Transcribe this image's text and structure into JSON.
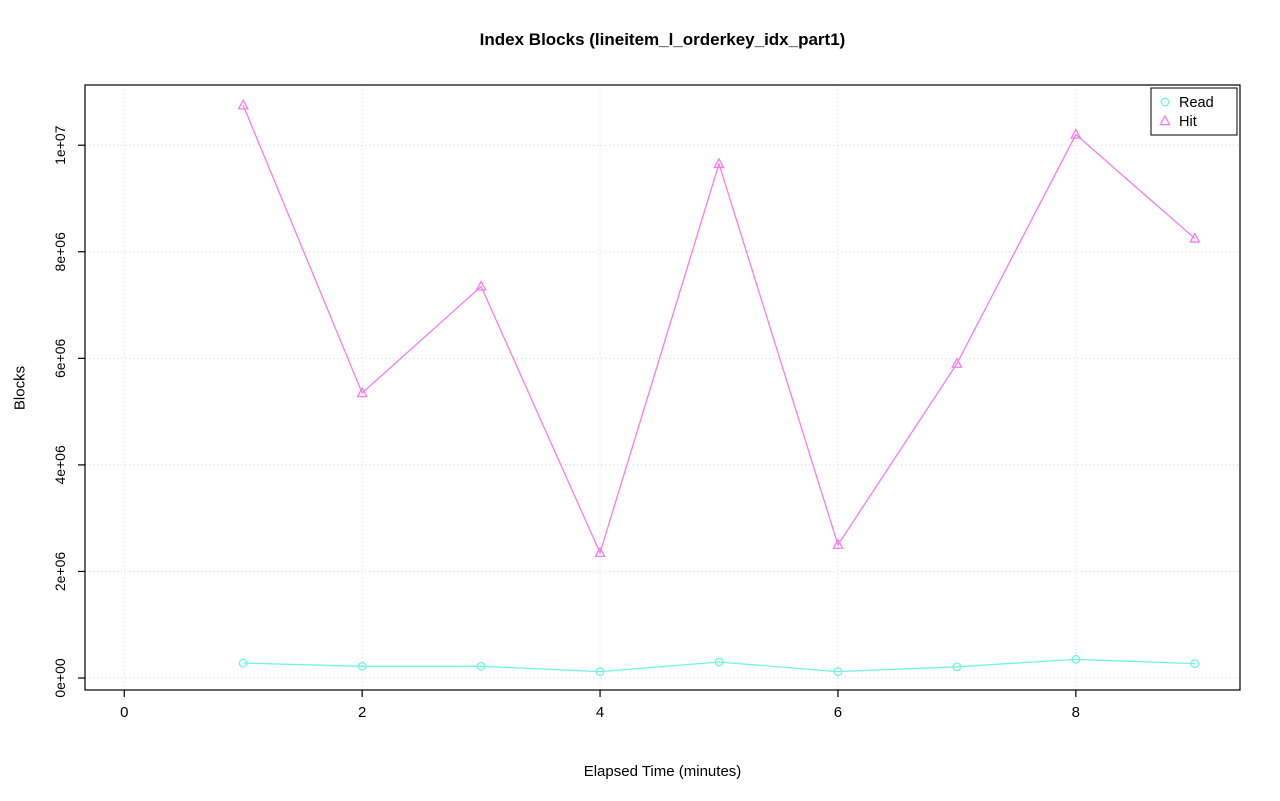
{
  "figure": {
    "title": "Index Blocks (lineitem_l_orderkey_idx_part1)",
    "xlabel": "Elapsed Time (minutes)",
    "ylabel": "Blocks"
  },
  "chart_data": {
    "type": "line",
    "title": "Index Blocks (lineitem_l_orderkey_idx_part1)",
    "xlabel": "Elapsed Time (minutes)",
    "ylabel": "Blocks",
    "x": [
      1,
      2,
      3,
      4,
      5,
      6,
      7,
      8,
      9
    ],
    "series": [
      {
        "name": "Read",
        "marker": "circle",
        "color": "#70f6e0",
        "values": [
          280000,
          220000,
          220000,
          120000,
          300000,
          120000,
          210000,
          350000,
          270000
        ]
      },
      {
        "name": "Hit",
        "marker": "triangle",
        "color": "#f87cef",
        "values": [
          10750000,
          5350000,
          7350000,
          2350000,
          9650000,
          2500000,
          5900000,
          10200000,
          8250000
        ]
      }
    ],
    "x_ticks": [
      0,
      2,
      4,
      6,
      8
    ],
    "x_tick_labels": [
      "0",
      "2",
      "4",
      "6",
      "8"
    ],
    "y_ticks": [
      0,
      2000000,
      4000000,
      6000000,
      8000000,
      10000000
    ],
    "y_tick_labels": [
      "0e+00",
      "2e+06",
      "4e+06",
      "6e+06",
      "8e+06",
      "1e+07"
    ],
    "xlim": [
      -0.33,
      9.38
    ],
    "ylim": [
      -225000,
      11130000
    ],
    "grid": true,
    "grid_color": "#d8d8d8",
    "box_color": "#000000",
    "background": "#ffffff",
    "legend_position": "top-right",
    "legend": [
      "Read",
      "Hit"
    ]
  }
}
